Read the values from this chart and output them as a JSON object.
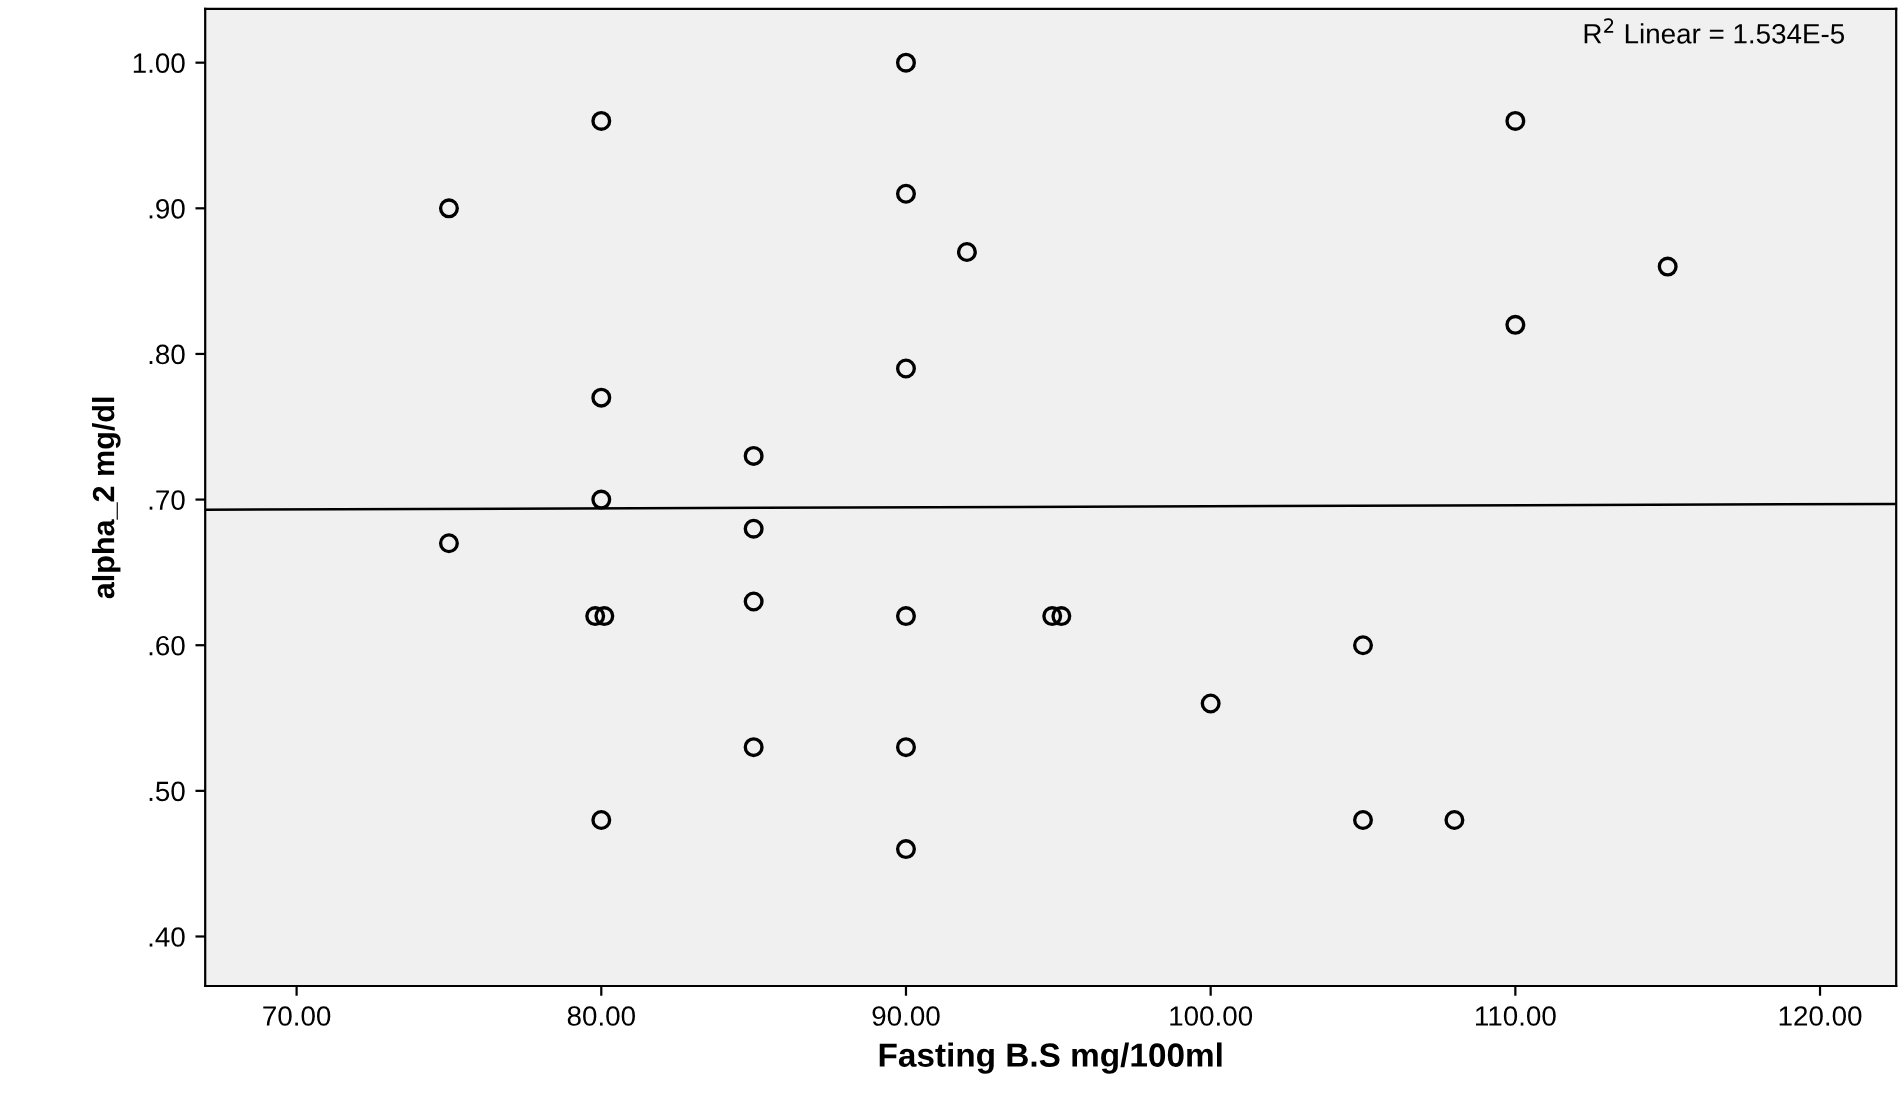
{
  "chart_data": {
    "type": "scatter",
    "xlabel": "Fasting B.S mg/100ml",
    "ylabel": "alpha_2 mg/dl",
    "xlim": [
      67,
      122.5
    ],
    "ylim": [
      0.366,
      1.037
    ],
    "xticks": [
      {
        "value": 70,
        "label": "70.00"
      },
      {
        "value": 80,
        "label": "80.00"
      },
      {
        "value": 90,
        "label": "90.00"
      },
      {
        "value": 100,
        "label": "100.00"
      },
      {
        "value": 110,
        "label": "110.00"
      },
      {
        "value": 120,
        "label": "120.00"
      }
    ],
    "yticks": [
      {
        "value": 0.4,
        "label": ".40"
      },
      {
        "value": 0.5,
        "label": ".50"
      },
      {
        "value": 0.6,
        "label": ".60"
      },
      {
        "value": 0.7,
        "label": ".70"
      },
      {
        "value": 0.8,
        "label": ".80"
      },
      {
        "value": 0.9,
        "label": ".90"
      },
      {
        "value": 1.0,
        "label": "1.00"
      }
    ],
    "grid": false,
    "legend": false,
    "annotations": [
      "R$^{2}$ Linear = 1.534E-5"
    ],
    "series": [
      {
        "marker": "circle",
        "color": "#000000",
        "x": [
          75,
          75,
          80,
          80,
          80,
          79.8,
          80.1,
          80,
          85,
          85,
          85,
          85,
          90,
          90,
          90,
          90,
          90,
          90,
          92,
          94.8,
          95.1,
          100,
          105,
          105,
          108,
          110,
          110,
          115
        ],
        "values": [
          0.9,
          0.67,
          0.96,
          0.77,
          0.7,
          0.62,
          0.62,
          0.48,
          0.73,
          0.68,
          0.63,
          0.53,
          1.0,
          0.91,
          0.79,
          0.62,
          0.53,
          0.46,
          0.87,
          0.62,
          0.62,
          0.56,
          0.6,
          0.48,
          0.48,
          0.96,
          0.82,
          0.86
        ]
      },
      {
        "type": "line",
        "marker": "none",
        "color": "#000000",
        "x": [
          67,
          122.5
        ],
        "values": [
          0.693,
          0.697
        ]
      }
    ]
  }
}
